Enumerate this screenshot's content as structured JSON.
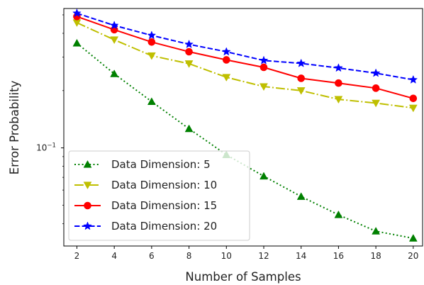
{
  "chart_data": {
    "type": "line",
    "title": "",
    "xlabel": "Number of Samples",
    "ylabel": "Error Probability",
    "yscale": "log",
    "xlim": [
      1.3,
      20.5
    ],
    "ylim": [
      0.0305,
      0.54
    ],
    "x": [
      2,
      4,
      6,
      8,
      10,
      12,
      14,
      16,
      18,
      20
    ],
    "x_ticks": [
      "2",
      "4",
      "6",
      "8",
      "10",
      "12",
      "14",
      "16",
      "18",
      "20"
    ],
    "y_ticks": [
      {
        "value": 0.1,
        "base": "10",
        "exp": "−1"
      }
    ],
    "grid": false,
    "legend": {
      "location": "lower left"
    },
    "series": [
      {
        "name": "Data Dimension: 5",
        "color": "#008000",
        "linestyle": "dotted",
        "marker": "triangle-up",
        "values": [
          0.355,
          0.245,
          0.175,
          0.126,
          0.092,
          0.071,
          0.0555,
          0.0445,
          0.0365,
          0.0335
        ]
      },
      {
        "name": "Data Dimension: 10",
        "color": "#bfbf00",
        "linestyle": "dashdot",
        "marker": "triangle-down",
        "values": [
          0.455,
          0.37,
          0.305,
          0.277,
          0.235,
          0.21,
          0.2,
          0.18,
          0.172,
          0.162
        ]
      },
      {
        "name": "Data Dimension: 15",
        "color": "#ff0000",
        "linestyle": "solid",
        "marker": "circle",
        "values": [
          0.49,
          0.418,
          0.36,
          0.32,
          0.29,
          0.265,
          0.232,
          0.219,
          0.206,
          0.182
        ]
      },
      {
        "name": "Data Dimension: 20",
        "color": "#0000ff",
        "linestyle": "dashed",
        "marker": "star",
        "values": [
          0.51,
          0.44,
          0.39,
          0.35,
          0.32,
          0.288,
          0.278,
          0.263,
          0.247,
          0.228
        ]
      }
    ]
  }
}
